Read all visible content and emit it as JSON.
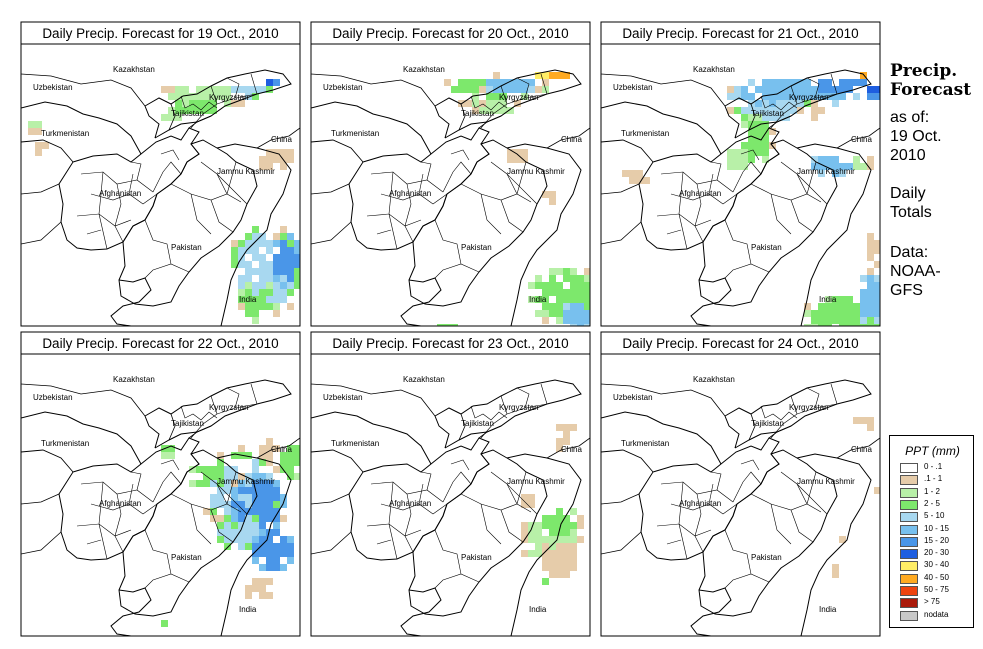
{
  "panels": [
    {
      "title": "Daily Precip. Forecast for  19 Oct., 2010"
    },
    {
      "title": "Daily Precip. Forecast for  20 Oct., 2010"
    },
    {
      "title": "Daily Precip. Forecast for  21 Oct., 2010"
    },
    {
      "title": "Daily Precip. Forecast for  22 Oct., 2010"
    },
    {
      "title": "Daily Precip. Forecast for  23 Oct., 2010"
    },
    {
      "title": "Daily Precip. Forecast for  24 Oct., 2010"
    }
  ],
  "places": [
    "Kazakhstan",
    "Uzbekistan",
    "Kyrgyzstan",
    "Tajikistan",
    "Turkmenistan",
    "China",
    "Afghanistan",
    "Jammu Kashmir",
    "Pakistan",
    "India"
  ],
  "sidebar": {
    "title_line1": "Precip.",
    "title_line2": "Forecast",
    "as_of_line1": "as of:",
    "as_of_line2": "19 Oct.",
    "as_of_line3": "2010",
    "daily_line1": "Daily",
    "daily_line2": "Totals",
    "data_line1": "Data:",
    "data_line2": "NOAA-",
    "data_line3": "GFS"
  },
  "legend": {
    "title": "PPT (mm)",
    "items": [
      {
        "label": "0 - .1",
        "color": "#ffffff"
      },
      {
        "label": ".1 - 1",
        "color": "#e6ccaa"
      },
      {
        "label": "1 - 2",
        "color": "#b8f0a8"
      },
      {
        "label": "2 - 5",
        "color": "#7de86c"
      },
      {
        "label": "5 - 10",
        "color": "#a8d8f0"
      },
      {
        "label": "10 - 15",
        "color": "#78c0ee"
      },
      {
        "label": "15 - 20",
        "color": "#4a96e8"
      },
      {
        "label": "20 - 30",
        "color": "#1e5ee0"
      },
      {
        "label": "30 - 40",
        "color": "#ffee66"
      },
      {
        "label": "40 - 50",
        "color": "#ffaa22"
      },
      {
        "label": "50 - 75",
        "color": "#ee4410"
      },
      {
        "label": "> 75",
        "color": "#aa1a0a"
      },
      {
        "label": "nodata",
        "color": "#c8c8c8"
      }
    ]
  }
}
